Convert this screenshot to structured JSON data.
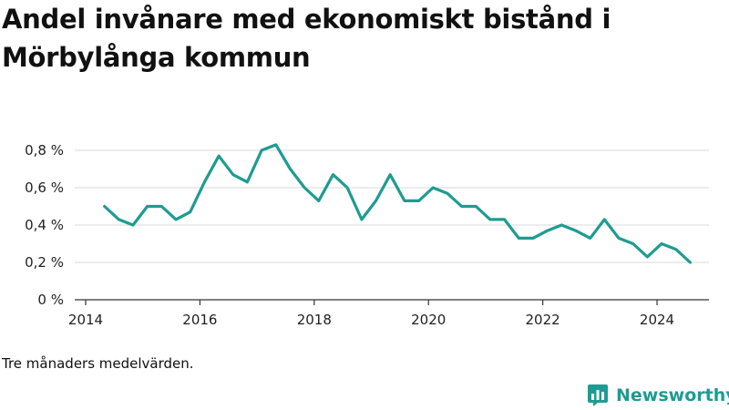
{
  "title": "Andel invånare med ekonomiskt bistånd i Mörbylånga kommun",
  "footnote": "Tre månaders medelvärden.",
  "brand": {
    "name": "Newsworthy",
    "color": "#1e9c91",
    "icon": "newsworthy-logo-icon"
  },
  "chart_data": {
    "type": "line",
    "title": "Andel invånare med ekonomiskt bistånd i Mörbylånga kommun",
    "xlabel": "",
    "ylabel": "",
    "xlim": [
      2014,
      2025.1
    ],
    "ylim": [
      0,
      0.8
    ],
    "grid": true,
    "line_color": "#1e9c91",
    "x_ticks": [
      2014,
      2016,
      2018,
      2020,
      2022,
      2024
    ],
    "x_tick_labels": [
      "2014",
      "2016",
      "2018",
      "2020",
      "2022",
      "2024"
    ],
    "y_ticks": [
      0,
      0.2,
      0.4,
      0.6,
      0.8
    ],
    "y_tick_labels": [
      "0 %",
      "0,2 %",
      "0,4 %",
      "0,6 %",
      "0,8 %"
    ],
    "series": [
      {
        "values": [
          [
            2014.33,
            0.5
          ],
          [
            2014.58,
            0.43
          ],
          [
            2014.83,
            0.4
          ],
          [
            2015.08,
            0.5
          ],
          [
            2015.33,
            0.5
          ],
          [
            2015.58,
            0.43
          ],
          [
            2015.83,
            0.47
          ],
          [
            2016.08,
            0.63
          ],
          [
            2016.33,
            0.77
          ],
          [
            2016.58,
            0.67
          ],
          [
            2016.83,
            0.63
          ],
          [
            2017.08,
            0.8
          ],
          [
            2017.33,
            0.83
          ],
          [
            2017.58,
            0.7
          ],
          [
            2017.83,
            0.6
          ],
          [
            2018.08,
            0.53
          ],
          [
            2018.33,
            0.67
          ],
          [
            2018.58,
            0.6
          ],
          [
            2018.83,
            0.43
          ],
          [
            2019.08,
            0.53
          ],
          [
            2019.33,
            0.67
          ],
          [
            2019.58,
            0.53
          ],
          [
            2019.83,
            0.53
          ],
          [
            2020.08,
            0.6
          ],
          [
            2020.33,
            0.57
          ],
          [
            2020.58,
            0.5
          ],
          [
            2020.83,
            0.5
          ],
          [
            2021.08,
            0.43
          ],
          [
            2021.33,
            0.43
          ],
          [
            2021.58,
            0.33
          ],
          [
            2021.83,
            0.33
          ],
          [
            2022.08,
            0.37
          ],
          [
            2022.33,
            0.4
          ],
          [
            2022.58,
            0.37
          ],
          [
            2022.83,
            0.33
          ],
          [
            2023.08,
            0.43
          ],
          [
            2023.33,
            0.33
          ],
          [
            2023.58,
            0.3
          ],
          [
            2023.83,
            0.23
          ],
          [
            2024.08,
            0.3
          ],
          [
            2024.33,
            0.27
          ],
          [
            2024.58,
            0.2
          ]
        ]
      }
    ]
  }
}
